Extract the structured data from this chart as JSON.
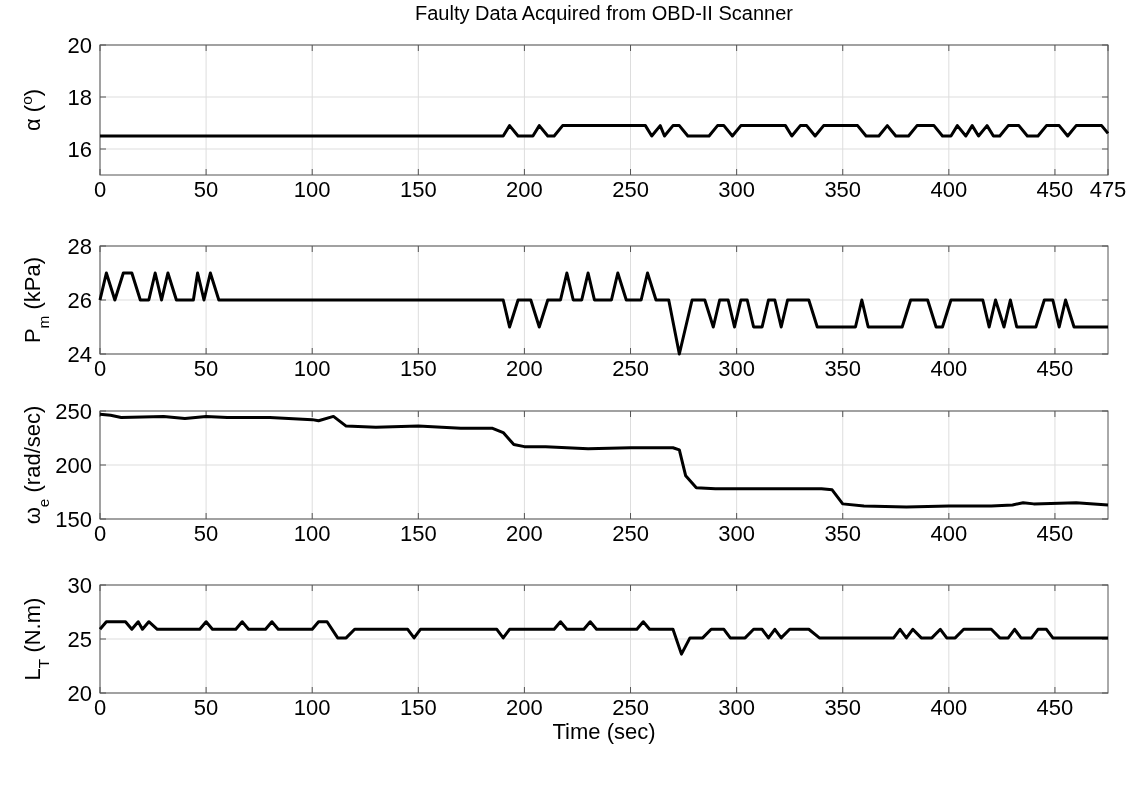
{
  "chart_data": [
    {
      "type": "line",
      "title": "Faulty Data Acquired from OBD-II Scanner",
      "ylabel": "α ($^{o}$)",
      "xlim": [
        0,
        475
      ],
      "xticks": [
        0,
        50,
        100,
        150,
        200,
        250,
        300,
        350,
        400,
        450,
        475
      ],
      "ylim": [
        15,
        20
      ],
      "yticks": [
        16,
        18,
        20
      ],
      "grid": true,
      "series": [
        {
          "color": "#000000",
          "x": [
            0,
            190,
            193,
            197,
            204,
            207,
            211,
            214,
            218,
            257,
            260,
            264,
            266,
            270,
            273,
            277,
            287,
            291,
            294,
            298,
            302,
            323,
            326,
            330,
            333,
            337,
            341,
            357,
            361,
            367,
            371,
            375,
            381,
            385,
            393,
            397,
            401,
            404,
            408,
            411,
            414,
            418,
            421,
            424,
            428,
            433,
            437,
            442,
            446,
            452,
            456,
            460,
            472,
            475
          ],
          "values": [
            16.5,
            16.5,
            16.9,
            16.5,
            16.5,
            16.9,
            16.5,
            16.5,
            16.9,
            16.9,
            16.5,
            16.9,
            16.5,
            16.9,
            16.9,
            16.5,
            16.5,
            16.9,
            16.9,
            16.5,
            16.9,
            16.9,
            16.5,
            16.9,
            16.9,
            16.5,
            16.9,
            16.9,
            16.5,
            16.5,
            16.9,
            16.5,
            16.5,
            16.9,
            16.9,
            16.5,
            16.5,
            16.9,
            16.5,
            16.9,
            16.5,
            16.9,
            16.5,
            16.5,
            16.9,
            16.9,
            16.5,
            16.5,
            16.9,
            16.9,
            16.5,
            16.9,
            16.9,
            16.6
          ]
        }
      ]
    },
    {
      "type": "line",
      "ylabel": "P$_{m}$ (kPa)",
      "xlim": [
        0,
        475
      ],
      "xticks": [
        0,
        50,
        100,
        150,
        200,
        250,
        300,
        350,
        400,
        450
      ],
      "ylim": [
        24,
        28
      ],
      "yticks": [
        24,
        26,
        28
      ],
      "grid": true,
      "series": [
        {
          "color": "#000000",
          "x": [
            0,
            3,
            7,
            11,
            15,
            19,
            23,
            26,
            29,
            32,
            36,
            44,
            46,
            49,
            52,
            56,
            190,
            193,
            197,
            203,
            207,
            211,
            217,
            220,
            223,
            227,
            230,
            233,
            241,
            244,
            248,
            255,
            258,
            262,
            268,
            273,
            279,
            285,
            289,
            292,
            296,
            299,
            302,
            305,
            308,
            312,
            315,
            318,
            321,
            324,
            334,
            338,
            356,
            359,
            362,
            378,
            382,
            390,
            394,
            397,
            401,
            416,
            419,
            422,
            426,
            429,
            432,
            441,
            445,
            449,
            452,
            455,
            459,
            475
          ],
          "values": [
            26,
            27,
            26,
            27,
            27,
            26,
            26,
            27,
            26,
            27,
            26,
            26,
            27,
            26,
            27,
            26,
            26,
            25,
            26,
            26,
            25,
            26,
            26,
            27,
            26,
            26,
            27,
            26,
            26,
            27,
            26,
            26,
            27,
            26,
            26,
            24,
            26,
            26,
            25,
            26,
            26,
            25,
            26,
            26,
            25,
            25,
            26,
            26,
            25,
            26,
            26,
            25,
            25,
            26,
            25,
            25,
            26,
            26,
            25,
            25,
            26,
            26,
            25,
            26,
            25,
            26,
            25,
            25,
            26,
            26,
            25,
            26,
            25,
            25
          ]
        }
      ]
    },
    {
      "type": "line",
      "ylabel": "ω$_{e}$ (rad/sec)",
      "xlim": [
        0,
        475
      ],
      "xticks": [
        0,
        50,
        100,
        150,
        200,
        250,
        300,
        350,
        400,
        450
      ],
      "ylim": [
        150,
        250
      ],
      "yticks": [
        150,
        200,
        250
      ],
      "grid": true,
      "series": [
        {
          "color": "#000000",
          "x": [
            0,
            5,
            10,
            30,
            40,
            50,
            60,
            80,
            100,
            103,
            110,
            116,
            130,
            150,
            170,
            185,
            190,
            195,
            200,
            210,
            230,
            250,
            270,
            273,
            276,
            281,
            290,
            320,
            340,
            345,
            350,
            360,
            380,
            400,
            420,
            430,
            435,
            440,
            460,
            475
          ],
          "values": [
            247,
            246,
            244,
            245,
            243,
            245,
            244,
            244,
            242,
            241,
            245,
            236,
            235,
            236,
            234,
            234,
            230,
            219,
            217,
            217,
            215,
            216,
            216,
            214,
            190,
            179,
            178,
            178,
            178,
            177,
            164,
            162,
            161,
            162,
            162,
            163,
            165,
            164,
            165,
            163
          ]
        }
      ]
    },
    {
      "type": "line",
      "xlabel": "Time (sec)",
      "ylabel": "L$_{T}$ (N.m)",
      "xlim": [
        0,
        475
      ],
      "xticks": [
        0,
        50,
        100,
        150,
        200,
        250,
        300,
        350,
        400,
        450
      ],
      "ylim": [
        20,
        30
      ],
      "yticks": [
        20,
        25,
        30
      ],
      "grid": true,
      "series": [
        {
          "color": "#000000",
          "x": [
            0,
            3,
            12,
            15,
            18,
            20,
            23,
            27,
            47,
            50,
            53,
            64,
            67,
            70,
            78,
            81,
            84,
            100,
            103,
            107,
            112,
            116,
            120,
            145,
            148,
            151,
            187,
            190,
            193,
            214,
            217,
            220,
            228,
            231,
            234,
            253,
            256,
            259,
            270,
            274,
            278,
            284,
            288,
            294,
            297,
            304,
            308,
            312,
            315,
            318,
            321,
            325,
            334,
            339,
            374,
            377,
            380,
            383,
            387,
            392,
            396,
            399,
            403,
            407,
            420,
            424,
            428,
            431,
            434,
            439,
            442,
            446,
            449,
            475
          ],
          "values": [
            25.9,
            26.6,
            26.6,
            25.9,
            26.6,
            25.9,
            26.6,
            25.9,
            25.9,
            26.6,
            25.9,
            25.9,
            26.6,
            25.9,
            25.9,
            26.6,
            25.9,
            25.9,
            26.6,
            26.6,
            25.1,
            25.1,
            25.9,
            25.9,
            25.1,
            25.9,
            25.9,
            25.1,
            25.9,
            25.9,
            26.6,
            25.9,
            25.9,
            26.6,
            25.9,
            25.9,
            26.6,
            25.9,
            25.9,
            23.6,
            25.1,
            25.1,
            25.9,
            25.9,
            25.1,
            25.1,
            25.9,
            25.9,
            25.1,
            25.9,
            25.1,
            25.9,
            25.9,
            25.1,
            25.1,
            25.9,
            25.1,
            25.9,
            25.1,
            25.1,
            25.9,
            25.1,
            25.1,
            25.9,
            25.9,
            25.1,
            25.1,
            25.9,
            25.1,
            25.1,
            25.9,
            25.9,
            25.1,
            25.1
          ]
        }
      ]
    }
  ]
}
